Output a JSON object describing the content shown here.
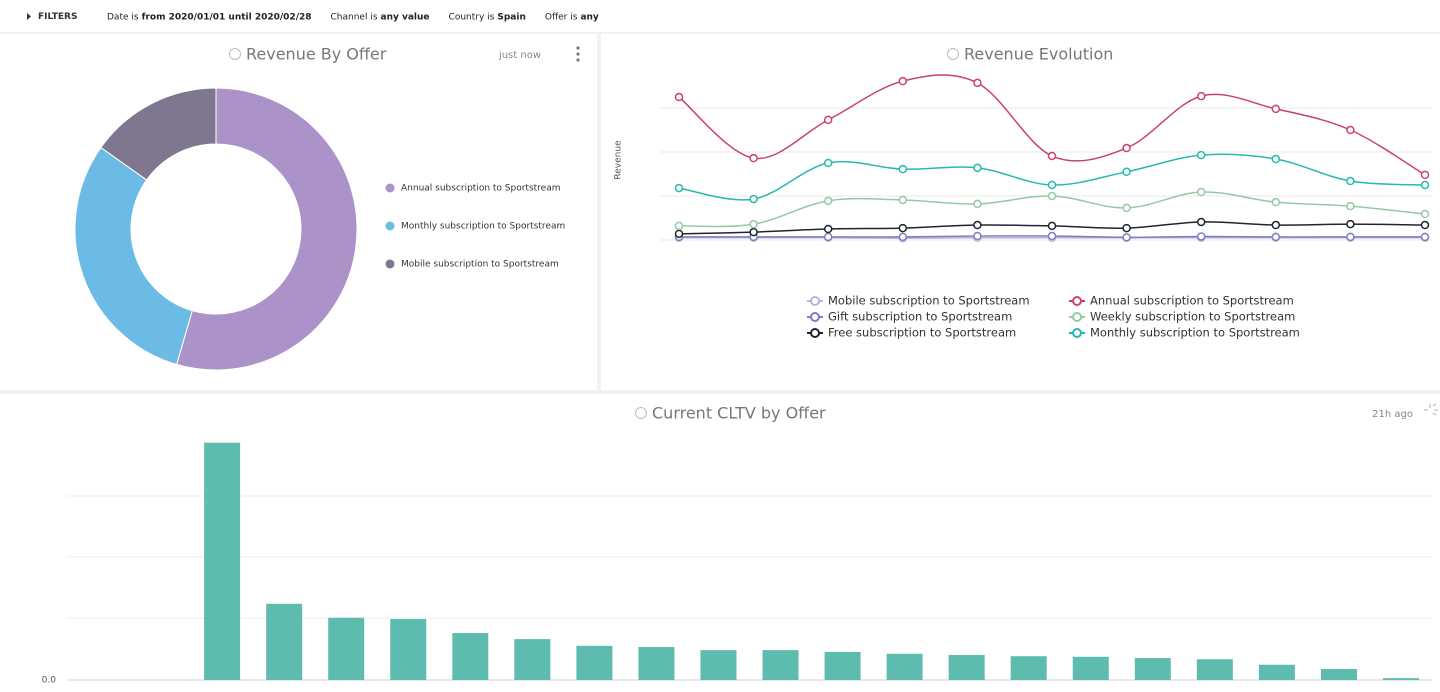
{
  "filters": {
    "label": "FILTERS",
    "items": [
      {
        "field": "Date is",
        "value": "from 2020/01/01 until 2020/02/28"
      },
      {
        "field": "Channel is",
        "value": "any value"
      },
      {
        "field": "Country is",
        "value": "Spain"
      },
      {
        "field": "Offer is",
        "value": "any"
      }
    ]
  },
  "chart_data": [
    {
      "type": "donut",
      "title": "Revenue By Offer",
      "status": "just now",
      "categories": [
        "Annual subscription to Sportstream",
        "Monthly subscription to Sportstream",
        "Mobile subscription to Sportstream"
      ],
      "values": [
        54.5,
        30.3,
        15.2
      ],
      "colors": [
        "#ab92c8",
        "#6bbbe6",
        "#7e778f"
      ]
    },
    {
      "type": "line",
      "title": "Revenue Evolution",
      "y_label": "Revenue",
      "categories": [
        null,
        null,
        null,
        null,
        null,
        null,
        null,
        null,
        null,
        null,
        null
      ],
      "ylim": [
        0,
        4
      ],
      "series": [
        {
          "name": "Mobile subscription to Sportstream",
          "color": "#b9b3d8",
          "values": [
            0.05,
            0.05,
            0.05,
            0.04,
            0.05,
            0.05,
            0.05,
            0.05,
            0.05,
            0.05,
            0.05
          ]
        },
        {
          "name": "Gift subscription to Sportstream",
          "color": "#7b7fc4",
          "values": [
            0.07,
            0.07,
            0.07,
            0.07,
            0.09,
            0.09,
            0.06,
            0.08,
            0.07,
            0.07,
            0.07
          ]
        },
        {
          "name": "Free subscription to Sportstream",
          "color": "#23232e",
          "values": [
            0.14,
            0.18,
            0.25,
            0.27,
            0.34,
            0.32,
            0.27,
            0.41,
            0.34,
            0.36,
            0.34
          ]
        },
        {
          "name": "Annual subscription to Sportstream",
          "color": "#cc3f77",
          "values": [
            3.25,
            1.86,
            2.73,
            3.61,
            3.57,
            1.91,
            2.09,
            3.27,
            2.98,
            2.5,
            1.48
          ]
        },
        {
          "name": "Weekly subscription to Sportstream",
          "color": "#93c9a5",
          "values": [
            0.32,
            0.36,
            0.89,
            0.91,
            0.82,
            1.0,
            0.73,
            1.09,
            0.86,
            0.77,
            0.59
          ]
        },
        {
          "name": "Monthly subscription to Sportstream",
          "color": "#27b8b0",
          "values": [
            1.18,
            0.93,
            1.75,
            1.61,
            1.64,
            1.25,
            1.55,
            1.93,
            1.84,
            1.34,
            1.25
          ]
        }
      ]
    },
    {
      "type": "bar",
      "title": "Current CLTV by Offer",
      "status": "21h ago",
      "color": "#5dbcae",
      "categories": [
        null,
        null,
        null,
        null,
        null,
        null,
        null,
        null,
        null,
        null,
        null,
        null,
        null,
        null,
        null,
        null,
        null,
        null,
        null,
        null,
        null,
        null
      ],
      "values": [
        0,
        0,
        3.89,
        1.25,
        1.02,
        1.0,
        0.77,
        0.67,
        0.56,
        0.54,
        0.49,
        0.49,
        0.46,
        0.43,
        0.41,
        0.39,
        0.38,
        0.36,
        0.34,
        0.25,
        0.18,
        0.03
      ],
      "ylim": [
        0,
        4
      ],
      "yticks": [
        {
          "value": 0,
          "label": "0.0"
        }
      ]
    }
  ]
}
